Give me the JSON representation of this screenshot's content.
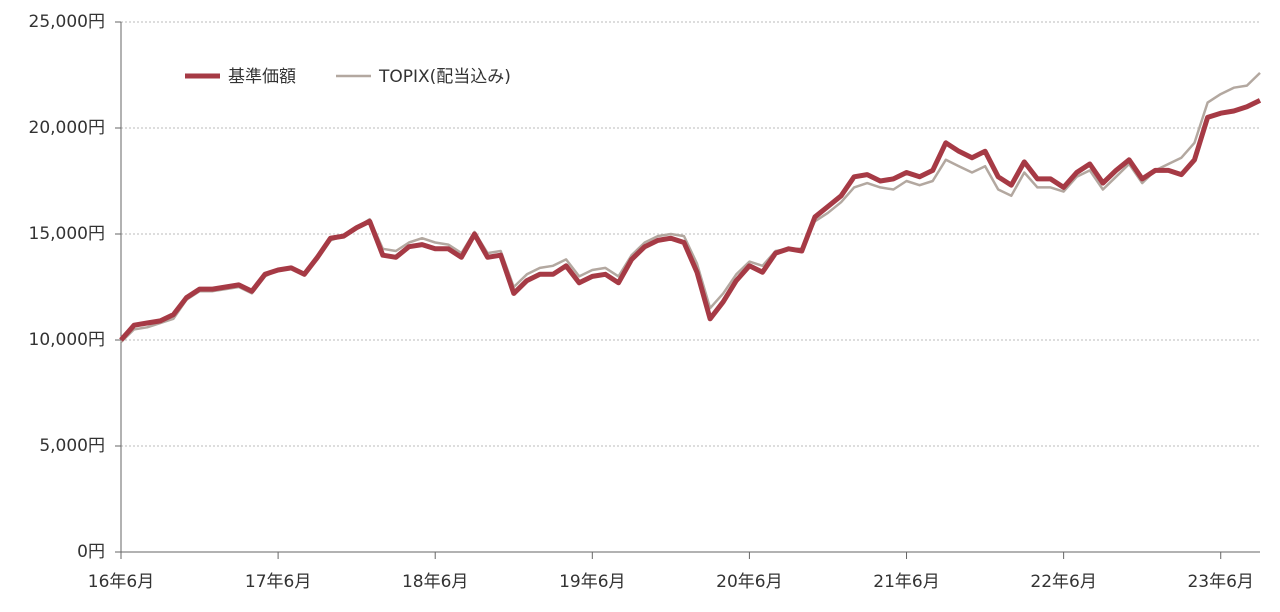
{
  "chart_data": {
    "type": "line",
    "categories": [
      "16年6月",
      null,
      null,
      null,
      null,
      null,
      null,
      null,
      null,
      null,
      null,
      null,
      "17年6月",
      null,
      null,
      null,
      null,
      null,
      null,
      null,
      null,
      null,
      null,
      null,
      "18年6月",
      null,
      null,
      null,
      null,
      null,
      null,
      null,
      null,
      null,
      null,
      null,
      "19年6月",
      null,
      null,
      null,
      null,
      null,
      null,
      null,
      null,
      null,
      null,
      null,
      "20年6月",
      null,
      null,
      null,
      null,
      null,
      null,
      null,
      null,
      null,
      null,
      null,
      "21年6月",
      null,
      null,
      null,
      null,
      null,
      null,
      null,
      null,
      null,
      null,
      null,
      "22年6月",
      null,
      null,
      null,
      null,
      null,
      null,
      null,
      null,
      null,
      null,
      null,
      "23年6月",
      null,
      null,
      null
    ],
    "series": [
      {
        "name": "基準価額",
        "color": "#a63a45",
        "width": 5,
        "values": [
          10000,
          10700,
          10800,
          10900,
          11200,
          12000,
          12400,
          12400,
          12500,
          12600,
          12300,
          13100,
          13300,
          13400,
          13100,
          13900,
          14800,
          14900,
          15300,
          15600,
          14000,
          13900,
          14400,
          14500,
          14300,
          14300,
          13900,
          15000,
          13900,
          14000,
          12200,
          12800,
          13100,
          13100,
          13500,
          12700,
          13000,
          13100,
          12700,
          13800,
          14400,
          14700,
          14800,
          14600,
          13200,
          11000,
          11800,
          12800,
          13500,
          13200,
          14100,
          14300,
          14200,
          15800,
          16300,
          16800,
          17700,
          17800,
          17500,
          17600,
          17900,
          17700,
          18000,
          19300,
          18900,
          18600,
          18900,
          17700,
          17300,
          18400,
          17600,
          17600,
          17200,
          17900,
          18300,
          17400,
          18000,
          18500,
          17600,
          18000,
          18000,
          17800,
          18500,
          20500,
          20700,
          20800,
          21000,
          21300
        ]
      },
      {
        "name": "TOPIX(配当込み)",
        "color": "#b3a8a0",
        "width": 2.5,
        "values": [
          9900,
          10500,
          10600,
          10800,
          11000,
          11900,
          12300,
          12300,
          12400,
          12500,
          12200,
          13000,
          13300,
          13400,
          13100,
          13800,
          14700,
          14900,
          15300,
          15700,
          14300,
          14200,
          14600,
          14800,
          14600,
          14500,
          14100,
          15100,
          14100,
          14200,
          12500,
          13100,
          13400,
          13500,
          13800,
          13000,
          13300,
          13400,
          13000,
          14000,
          14600,
          14900,
          15000,
          14900,
          13600,
          11500,
          12200,
          13100,
          13700,
          13500,
          14200,
          14300,
          14300,
          15600,
          16000,
          16500,
          17200,
          17400,
          17200,
          17100,
          17500,
          17300,
          17500,
          18500,
          18200,
          17900,
          18200,
          17100,
          16800,
          17900,
          17200,
          17200,
          17000,
          17700,
          18000,
          17100,
          17700,
          18300,
          17400,
          18000,
          18300,
          18600,
          19300,
          21200,
          21600,
          21900,
          22000,
          22600
        ]
      }
    ],
    "ylim": [
      0,
      25000
    ],
    "yticks": [
      {
        "value": 0,
        "label": "0円"
      },
      {
        "value": 5000,
        "label": "5,000円"
      },
      {
        "value": 10000,
        "label": "10,000円"
      },
      {
        "value": 15000,
        "label": "15,000円"
      },
      {
        "value": 20000,
        "label": "20,000円"
      },
      {
        "value": 25000,
        "label": "25,000円"
      }
    ],
    "grid": true,
    "legend": "upper left"
  }
}
